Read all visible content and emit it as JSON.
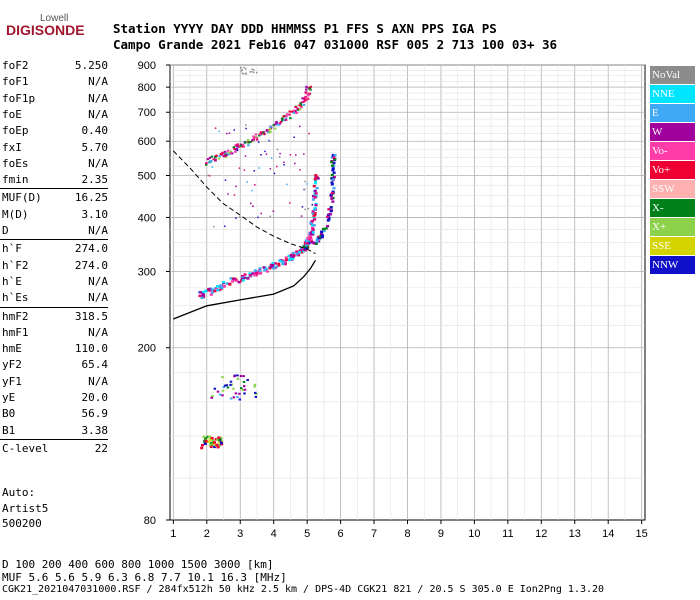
{
  "logo": {
    "top": "Lowell",
    "main": "DIGISONDE",
    "color": "#a0162c"
  },
  "header": {
    "row1": "Station      YYYY DAY   DDD HHMMSS P1  FFS S AXN PPS IGA PS",
    "row2": "Campo Grande 2021 Feb16 047 031000 RSF 005 2 713 100 03+ 36"
  },
  "params": [
    {
      "name": "foF2",
      "value": "5.250"
    },
    {
      "name": "foF1",
      "value": "N/A"
    },
    {
      "name": "foF1p",
      "value": "N/A"
    },
    {
      "name": "foE",
      "value": "N/A"
    },
    {
      "name": "foEp",
      "value": "0.40"
    },
    {
      "name": "fxI",
      "value": "5.70"
    },
    {
      "name": "foEs",
      "value": "N/A"
    },
    {
      "name": "fmin",
      "value": "2.35"
    },
    {
      "name": "MUF(D)",
      "value": "16.25"
    },
    {
      "name": "M(D)",
      "value": "3.10"
    },
    {
      "name": "D",
      "value": "N/A"
    },
    {
      "name": "h`F",
      "value": "274.0"
    },
    {
      "name": "h`F2",
      "value": "274.0"
    },
    {
      "name": "h`E",
      "value": "N/A"
    },
    {
      "name": "h`Es",
      "value": "N/A"
    },
    {
      "name": "hmF2",
      "value": "318.5"
    },
    {
      "name": "hmF1",
      "value": "N/A"
    },
    {
      "name": "hmE",
      "value": "110.0"
    },
    {
      "name": "yF2",
      "value": "65.4"
    },
    {
      "name": "yF1",
      "value": "N/A"
    },
    {
      "name": "yE",
      "value": "20.0"
    },
    {
      "name": "B0",
      "value": "56.9"
    },
    {
      "name": "B1",
      "value": "3.38"
    },
    {
      "name": "C-level",
      "value": "22"
    }
  ],
  "auto": {
    "line1": "Auto:",
    "line2": "Artist5",
    "line3": "500200"
  },
  "legend": [
    {
      "label": "NoVal",
      "color": "#8c8c8c"
    },
    {
      "label": "NNE",
      "color": "#00e5ff"
    },
    {
      "label": "E",
      "color": "#3fa9f5"
    },
    {
      "label": "W",
      "color": "#a0009c"
    },
    {
      "label": "Vo-",
      "color": "#ff3ca8"
    },
    {
      "label": "Vo+",
      "color": "#ee0033"
    },
    {
      "label": "SSW",
      "color": "#ffb0b0"
    },
    {
      "label": "X-",
      "color": "#00801a"
    },
    {
      "label": "X+",
      "color": "#8cd14a"
    },
    {
      "label": "SSE",
      "color": "#d4d400"
    },
    {
      "label": "NNW",
      "color": "#1010c8"
    }
  ],
  "bottom": {
    "row1": "D    100  200  400  600  800 1000 1500 3000 [km]",
    "row2": "MUF   5.6  5.6  5.9  6.3  6.8  7.7 10.1 16.3 [MHz]",
    "row3": "CGK21_2021047031000.RSF / 284fx512h 50 kHz 2.5 km / DPS-4D CGK21 821 / 20.5 S 305.0 E Ion2Png 1.3.20"
  },
  "chart_data": {
    "type": "scatter",
    "title": "",
    "xlabel": "",
    "ylabel": "",
    "x_ticks": [
      1,
      2,
      3,
      4,
      5,
      6,
      7,
      8,
      9,
      10,
      11,
      12,
      13,
      14,
      15
    ],
    "y_ticks": [
      80,
      200,
      300,
      400,
      500,
      600,
      700,
      800,
      900
    ],
    "xlim": [
      0.9,
      15.1
    ],
    "ylim": [
      80,
      900
    ],
    "y_scale": "log",
    "grid": true,
    "legend_position": "right",
    "o_trace_color": "#e0007a",
    "o_trace_profile": [
      [
        1.8,
        263
      ],
      [
        2.0,
        268
      ],
      [
        2.3,
        275
      ],
      [
        2.6,
        281
      ],
      [
        3.0,
        288
      ],
      [
        3.3,
        294
      ],
      [
        3.6,
        300
      ],
      [
        3.9,
        307
      ],
      [
        4.2,
        314
      ],
      [
        4.5,
        322
      ],
      [
        4.7,
        329
      ],
      [
        4.9,
        338
      ],
      [
        5.0,
        347
      ],
      [
        5.1,
        360
      ],
      [
        5.15,
        380
      ],
      [
        5.2,
        410
      ],
      [
        5.25,
        450
      ],
      [
        5.3,
        500
      ]
    ],
    "second_hop_profile": [
      [
        2.0,
        535
      ],
      [
        2.3,
        548
      ],
      [
        2.6,
        562
      ],
      [
        2.9,
        578
      ],
      [
        3.2,
        596
      ],
      [
        3.5,
        614
      ],
      [
        3.8,
        633
      ],
      [
        4.1,
        656
      ],
      [
        4.4,
        680
      ],
      [
        4.7,
        710
      ],
      [
        4.9,
        740
      ],
      [
        5.0,
        770
      ],
      [
        5.05,
        800
      ]
    ],
    "x_trace_profile": [
      [
        4.9,
        340
      ],
      [
        5.2,
        350
      ],
      [
        5.4,
        360
      ],
      [
        5.6,
        380
      ],
      [
        5.7,
        420
      ],
      [
        5.8,
        470
      ],
      [
        5.75,
        520
      ],
      [
        5.8,
        560
      ]
    ],
    "es_layer": [
      [
        1.7,
        120
      ],
      [
        2.6,
        120
      ],
      [
        2.0,
        160
      ],
      [
        3.5,
        162
      ]
    ],
    "true_height_profile": [
      [
        1.0,
        233
      ],
      [
        2.0,
        250
      ],
      [
        3.0,
        258
      ],
      [
        4.0,
        266
      ],
      [
        4.6,
        278
      ],
      [
        4.9,
        292
      ],
      [
        5.1,
        305
      ],
      [
        5.25,
        318.5
      ]
    ],
    "muf_curve": [
      [
        1.0,
        570
      ],
      [
        1.5,
        520
      ],
      [
        2.0,
        470
      ],
      [
        2.5,
        430
      ],
      [
        3.0,
        405
      ],
      [
        3.5,
        380
      ],
      [
        4.0,
        362
      ],
      [
        4.5,
        348
      ],
      [
        5.0,
        338
      ],
      [
        5.25,
        330
      ]
    ]
  }
}
